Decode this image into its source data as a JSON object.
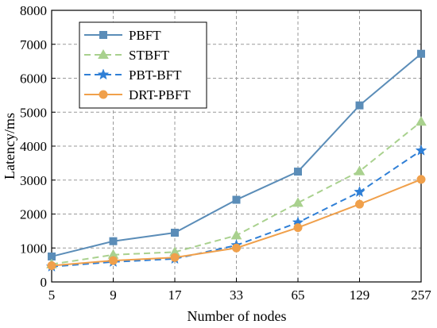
{
  "chart_data": {
    "type": "line",
    "title": "",
    "xlabel": "Number of nodes",
    "ylabel": "Latency/ms",
    "categories": [
      "5",
      "9",
      "17",
      "33",
      "65",
      "129",
      "257"
    ],
    "ylim": [
      0,
      8000
    ],
    "yticks": [
      0,
      1000,
      2000,
      3000,
      4000,
      5000,
      6000,
      7000,
      8000
    ],
    "grid": true,
    "legend_position": "top-left",
    "series": [
      {
        "name": "PBFT",
        "color": "#5b8db8",
        "marker": "square",
        "dash": "solid",
        "values": [
          750,
          1200,
          1450,
          2420,
          3250,
          5200,
          6720
        ]
      },
      {
        "name": "STBFT",
        "color": "#a9d18e",
        "marker": "triangle",
        "dash": "dashed",
        "values": [
          520,
          800,
          880,
          1370,
          2330,
          3260,
          4720
        ]
      },
      {
        "name": "PBT-BFT",
        "color": "#2f7fd6",
        "marker": "star",
        "dash": "dashed",
        "values": [
          450,
          590,
          680,
          1080,
          1750,
          2650,
          3870
        ]
      },
      {
        "name": "DRT-PBFT",
        "color": "#f0a04b",
        "marker": "circle",
        "dash": "solid",
        "values": [
          480,
          630,
          720,
          1000,
          1600,
          2290,
          3020
        ]
      }
    ]
  }
}
